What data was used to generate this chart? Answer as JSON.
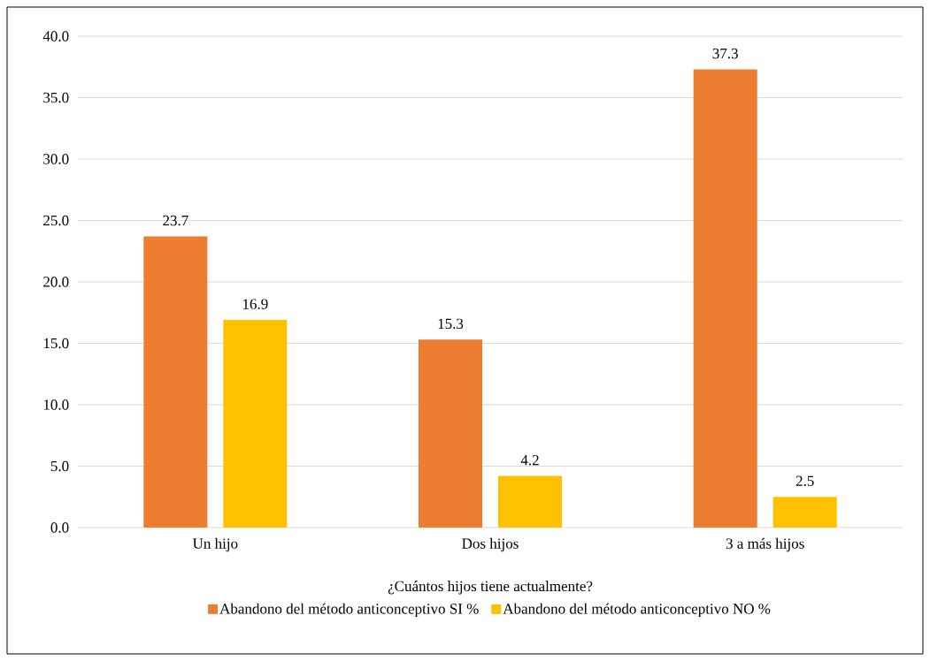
{
  "chart_data": {
    "type": "bar",
    "xlabel": "¿Cuántos hijos tiene actualmente?",
    "categories": [
      "Un hijo",
      "Dos hijos",
      "3 a más hijos"
    ],
    "series": [
      {
        "name": "Abandono del método anticonceptivo SI %",
        "color": "#ed7d31",
        "values": [
          23.7,
          15.3,
          37.3
        ],
        "value_labels": [
          "23.7",
          "15.3",
          "37.3"
        ]
      },
      {
        "name": "Abandono del método anticonceptivo NO %",
        "color": "#ffc000",
        "values": [
          16.9,
          4.2,
          2.5
        ],
        "value_labels": [
          "16.9",
          "4.2",
          "2.5"
        ]
      }
    ],
    "ylim": [
      0,
      40
    ],
    "yticks": [
      {
        "value": 0,
        "label": "0.0"
      },
      {
        "value": 5,
        "label": "5.0"
      },
      {
        "value": 10,
        "label": "10.0"
      },
      {
        "value": 15,
        "label": "15.0"
      },
      {
        "value": 20,
        "label": "20.0"
      },
      {
        "value": 25,
        "label": "25.0"
      },
      {
        "value": 30,
        "label": "30.0"
      },
      {
        "value": 35,
        "label": "35.0"
      },
      {
        "value": 40,
        "label": "40.0"
      }
    ],
    "grid": "y",
    "legend": "bottom"
  }
}
